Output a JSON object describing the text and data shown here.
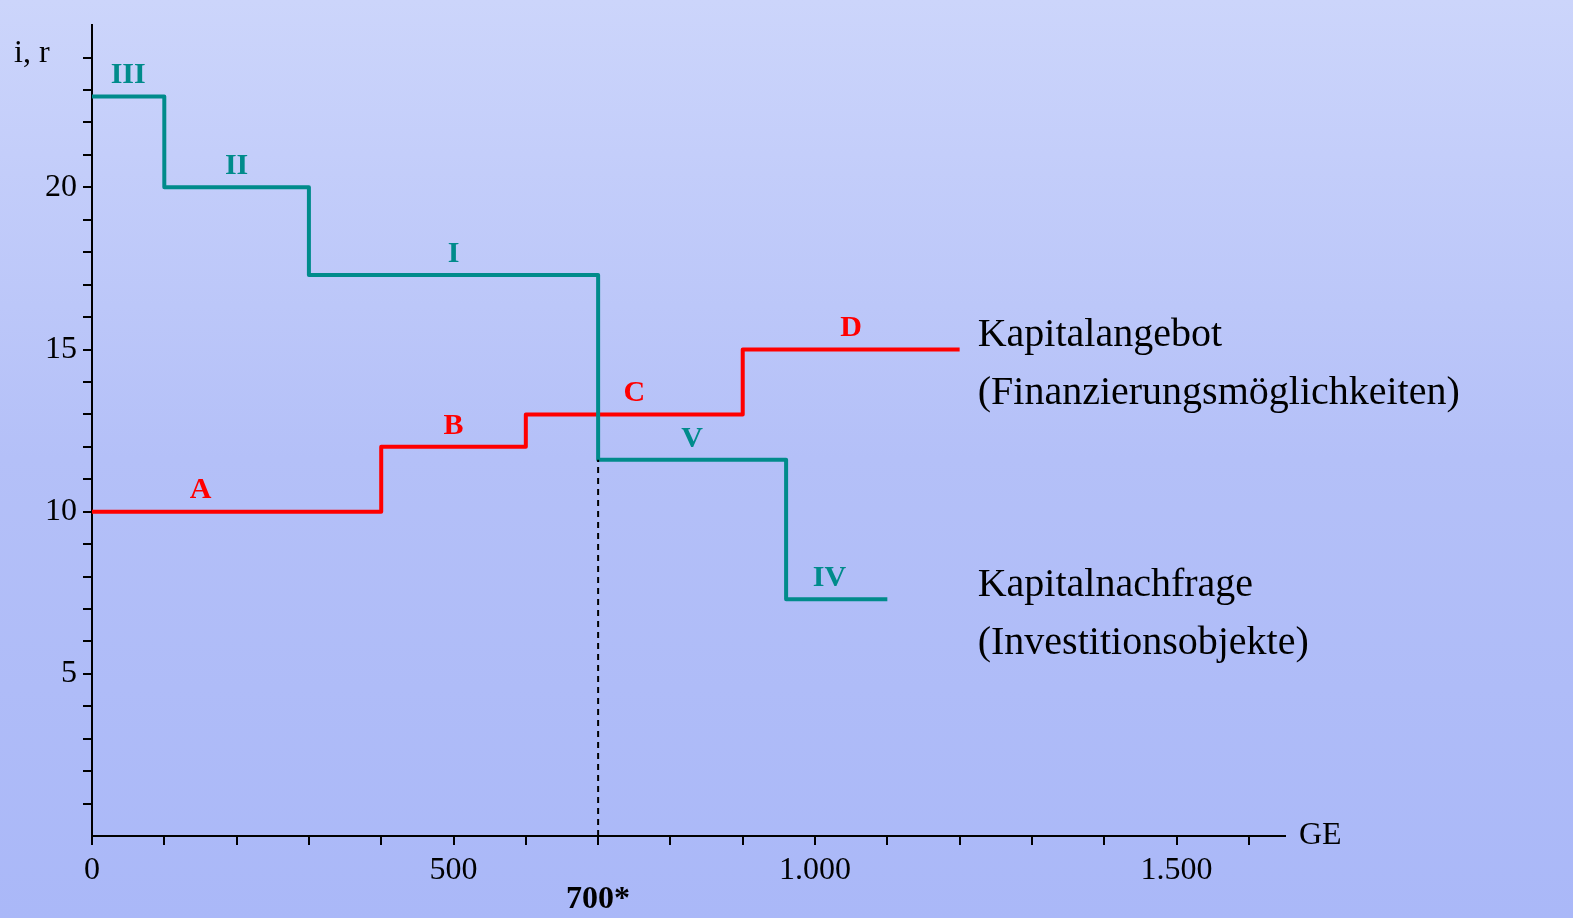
{
  "chart_data": {
    "type": "step",
    "xlabel": "GE",
    "ylabel": "i, r",
    "xlim": [
      0,
      1650
    ],
    "ylim": [
      0,
      25
    ],
    "xticks": [
      0,
      {
        "value": 100,
        "label": null
      },
      {
        "value": 200,
        "label": null
      },
      {
        "value": 300,
        "label": null
      },
      {
        "value": 400,
        "label": null
      },
      500,
      {
        "value": 600,
        "label": null
      },
      {
        "value": 700,
        "label": null
      },
      {
        "value": 800,
        "label": null
      },
      {
        "value": 900,
        "label": null
      },
      {
        "value": 1000,
        "label": "1.000"
      },
      {
        "value": 1100,
        "label": null
      },
      {
        "value": 1200,
        "label": null
      },
      {
        "value": 1300,
        "label": null
      },
      {
        "value": 1400,
        "label": null
      },
      {
        "value": 1500,
        "label": "1.500"
      },
      {
        "value": 1600,
        "label": null
      }
    ],
    "yticks": [
      {
        "value": 1,
        "label": null
      },
      {
        "value": 2,
        "label": null
      },
      {
        "value": 3,
        "label": null
      },
      {
        "value": 4,
        "label": null
      },
      5,
      {
        "value": 6,
        "label": null
      },
      {
        "value": 7,
        "label": null
      },
      {
        "value": 8,
        "label": null
      },
      {
        "value": 9,
        "label": null
      },
      10,
      {
        "value": 11,
        "label": null
      },
      {
        "value": 12,
        "label": null
      },
      {
        "value": 13,
        "label": null
      },
      {
        "value": 14,
        "label": null
      },
      15,
      {
        "value": 16,
        "label": null
      },
      {
        "value": 17,
        "label": null
      },
      {
        "value": 18,
        "label": null
      },
      {
        "value": 19,
        "label": null
      },
      20,
      {
        "value": 21,
        "label": null
      },
      {
        "value": 22,
        "label": null
      },
      {
        "value": 23,
        "label": null
      },
      {
        "value": 24,
        "label": null
      }
    ],
    "series": [
      {
        "name": "Kapitalnachfrage\n(Investitionsobjekte)",
        "color": "#008b8b",
        "x": [
          0,
          100,
          300,
          700,
          960,
          1100
        ],
        "values": [
          22.8,
          20,
          17.3,
          11.6,
          7.3,
          7.3
        ]
      },
      {
        "name": "Kapitalangebot\n(Finanzierungsmöglichkeiten)",
        "color": "#ff0000",
        "x": [
          0,
          400,
          600,
          900,
          1200
        ],
        "values": [
          10,
          12,
          13,
          15,
          15
        ]
      }
    ],
    "ref_lines": [
      {
        "axis": "x",
        "value": 700,
        "label": "700*",
        "line_style": "dashed"
      }
    ],
    "annotations": [
      {
        "text": "III",
        "x": 50,
        "y": 22.8
      },
      {
        "text": "II",
        "x": 200,
        "y": 20
      },
      {
        "text": "I",
        "x": 500,
        "y": 17.3
      },
      {
        "text": "V",
        "x": 830,
        "y": 11.6
      },
      {
        "text": "IV",
        "x": 1020,
        "y": 7.3
      },
      {
        "text": "A",
        "x": 150,
        "y": 10
      },
      {
        "text": "B",
        "x": 500,
        "y": 12
      },
      {
        "text": "C",
        "x": 750,
        "y": 13
      },
      {
        "text": "D",
        "x": 1050,
        "y": 15
      }
    ]
  }
}
